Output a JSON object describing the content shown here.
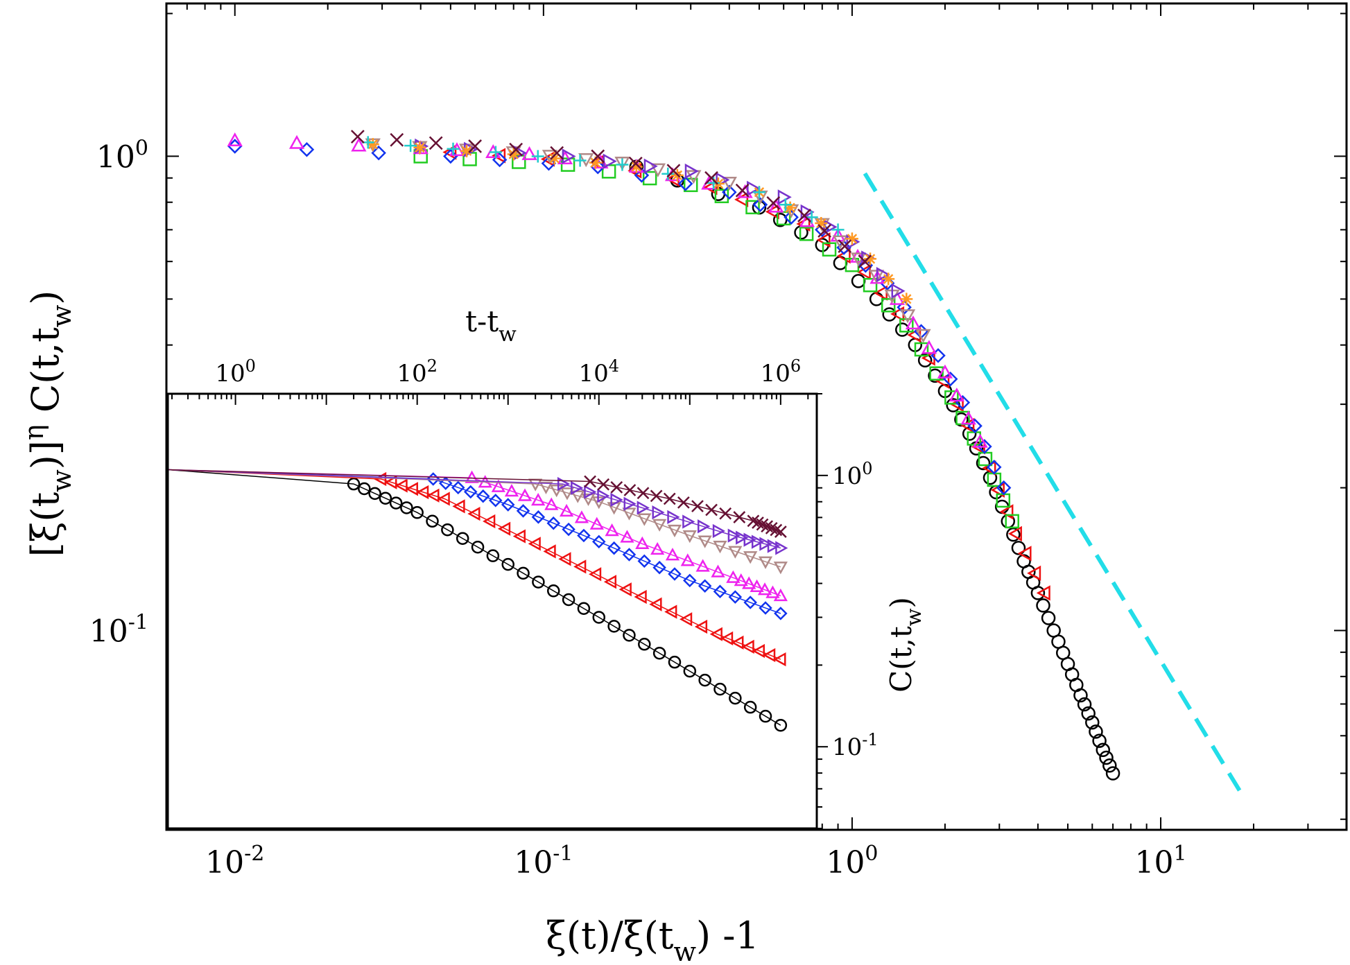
{
  "chart_data": [
    {
      "name": "main",
      "type": "scatter",
      "xscale": "log",
      "yscale": "log",
      "xlim": [
        0.006,
        40
      ],
      "ylim": [
        0.038,
        2.1
      ],
      "xlabel": "ξ(t)/ξ(t_w)  -1",
      "xlabel_parts": [
        "ξ(t)/ξ(t",
        "w",
        ")  -1"
      ],
      "ylabel": "[ξ(t_w)]^η C(t,t_w)",
      "ylabel_parts": [
        "[ξ(t",
        "w",
        ")]",
        "η",
        " C(t,t",
        "w",
        ")"
      ],
      "xticks": [
        {
          "value": 0.01,
          "base": "10",
          "exp": "-2"
        },
        {
          "value": 0.1,
          "base": "10",
          "exp": "-1"
        },
        {
          "value": 1,
          "base": "10",
          "exp": "0"
        },
        {
          "value": 10,
          "base": "10",
          "exp": "1"
        }
      ],
      "yticks": [
        {
          "value": 0.1,
          "base": "10",
          "exp": "-1"
        },
        {
          "value": 1,
          "base": "10",
          "exp": "0"
        }
      ],
      "reference_line": {
        "name": "power-law guide",
        "color": "#22dde8",
        "style": "dashed",
        "x": [
          1.1,
          18
        ],
        "y": [
          0.92,
          0.046
        ]
      },
      "series": [
        {
          "name": "circles",
          "marker": "circle",
          "color": "#000000",
          "x": [
            0.2,
            0.5,
            0.8,
            1.2,
            1.6,
            2,
            2.4,
            2.8,
            3.2,
            3.6,
            4,
            4.5,
            5,
            5.5,
            6,
            6.5,
            7
          ],
          "y": [
            0.95,
            0.78,
            0.65,
            0.5,
            0.4,
            0.32,
            0.26,
            0.21,
            0.17,
            0.14,
            0.12,
            0.1,
            0.085,
            0.073,
            0.064,
            0.056,
            0.05
          ]
        },
        {
          "name": "triangles-left",
          "marker": "triangle-left",
          "color": "#ee1111",
          "x": [
            0.05,
            0.15,
            0.35,
            0.7,
            1.1,
            1.6,
            2.2,
            2.8,
            3.4,
            4.2
          ],
          "y": [
            1.02,
            0.97,
            0.86,
            0.72,
            0.57,
            0.42,
            0.3,
            0.22,
            0.16,
            0.12
          ]
        },
        {
          "name": "squares",
          "marker": "square",
          "color": "#22cc22",
          "x": [
            0.04,
            0.12,
            0.3,
            0.6,
            1,
            1.5,
            2.1,
            2.7,
            3.3
          ],
          "y": [
            1,
            0.96,
            0.87,
            0.74,
            0.59,
            0.44,
            0.31,
            0.23,
            0.17
          ]
        },
        {
          "name": "diamonds",
          "marker": "diamond",
          "color": "#1133ee",
          "x": [
            0.01,
            0.05,
            0.15,
            0.4,
            0.8,
            1.3,
            1.9,
            2.5,
            3.1
          ],
          "y": [
            1.05,
            1,
            0.95,
            0.84,
            0.7,
            0.54,
            0.38,
            0.27,
            0.2
          ]
        },
        {
          "name": "triangles-up",
          "marker": "triangle-up",
          "color": "#ee22ee",
          "x": [
            0.01,
            0.04,
            0.09,
            0.2,
            0.45,
            0.9,
            1.4,
            2,
            2.6
          ],
          "y": [
            1.08,
            1.04,
            1.01,
            0.95,
            0.84,
            0.68,
            0.5,
            0.35,
            0.25
          ]
        },
        {
          "name": "triangles-down",
          "marker": "triangle-down",
          "color": "#b08a88",
          "x": [
            0.028,
            0.08,
            0.18,
            0.4,
            0.8,
            1.2,
            1.7
          ],
          "y": [
            1.06,
            1.02,
            0.97,
            0.88,
            0.72,
            0.56,
            0.42
          ]
        },
        {
          "name": "triangles-right",
          "marker": "triangle-right",
          "color": "#7733cc",
          "x": [
            0.04,
            0.12,
            0.3,
            0.6,
            1,
            1.4
          ],
          "y": [
            1.05,
            1,
            0.93,
            0.82,
            0.66,
            0.52
          ]
        },
        {
          "name": "asterisks",
          "marker": "star",
          "color": "#ff9922",
          "x": [
            0.028,
            0.08,
            0.2,
            0.5,
            1,
            1.5
          ],
          "y": [
            1.06,
            1.01,
            0.95,
            0.84,
            0.67,
            0.5
          ]
        },
        {
          "name": "plus",
          "marker": "plus",
          "color": "#22cccc",
          "x": [
            0.027,
            0.07,
            0.18,
            0.5,
            0.9
          ],
          "y": [
            1.07,
            1.02,
            0.96,
            0.84,
            0.7
          ]
        },
        {
          "name": "crosses",
          "marker": "cross",
          "color": "#661133",
          "x": [
            0.025,
            0.06,
            0.15,
            0.35,
            0.7,
            1.1
          ],
          "y": [
            1.1,
            1.05,
            1,
            0.9,
            0.75,
            0.6
          ]
        }
      ]
    },
    {
      "name": "inset",
      "type": "scatter",
      "xscale": "log",
      "yscale": "log",
      "xlim": [
        0.18,
        2500000
      ],
      "ylim": [
        0.05,
        2
      ],
      "xlabel": "t-t_w",
      "xlabel_parts": [
        "t-t",
        "w"
      ],
      "ylabel": "C(t,t_w)",
      "ylabel_parts": [
        "C(t,t",
        "w",
        ")"
      ],
      "xticks": [
        {
          "value": 1,
          "base": "10",
          "exp": "0"
        },
        {
          "value": 100,
          "base": "10",
          "exp": "2"
        },
        {
          "value": 10000,
          "base": "10",
          "exp": "4"
        },
        {
          "value": 1000000,
          "base": "10",
          "exp": "6"
        }
      ],
      "yticks": [
        {
          "value": 0.1,
          "base": "10",
          "exp": "-1"
        },
        {
          "value": 1,
          "base": "10",
          "exp": "0"
        }
      ],
      "series": [
        {
          "name": "circles",
          "marker": "circle",
          "color": "#000000",
          "x": [
            20,
            100,
            1000,
            10000,
            100000,
            1000000
          ],
          "y": [
            0.93,
            0.73,
            0.47,
            0.3,
            0.19,
            0.12
          ]
        },
        {
          "name": "triangles-left",
          "marker": "triangle-left",
          "color": "#ee1111",
          "x": [
            40,
            200,
            2000,
            20000,
            200000,
            1000000
          ],
          "y": [
            0.97,
            0.82,
            0.56,
            0.38,
            0.26,
            0.21
          ]
        },
        {
          "name": "diamonds",
          "marker": "diamond",
          "color": "#1133ee",
          "x": [
            150,
            1000,
            10000,
            100000,
            1000000
          ],
          "y": [
            0.97,
            0.78,
            0.57,
            0.41,
            0.31
          ]
        },
        {
          "name": "triangles-up",
          "marker": "triangle-up",
          "color": "#ee22ee",
          "x": [
            400,
            3000,
            30000,
            300000,
            1000000
          ],
          "y": [
            0.98,
            0.78,
            0.56,
            0.42,
            0.36
          ]
        },
        {
          "name": "triangles-down",
          "marker": "triangle-down",
          "color": "#b08a88",
          "x": [
            2000,
            10000,
            100000,
            1000000
          ],
          "y": [
            0.93,
            0.8,
            0.6,
            0.46
          ]
        },
        {
          "name": "triangles-right",
          "marker": "triangle-right",
          "color": "#7733cc",
          "x": [
            4000,
            30000,
            300000,
            1000000
          ],
          "y": [
            0.93,
            0.76,
            0.6,
            0.54
          ]
        },
        {
          "name": "crosses",
          "marker": "cross",
          "color": "#661133",
          "x": [
            8000,
            60000,
            500000,
            1000000
          ],
          "y": [
            0.95,
            0.82,
            0.68,
            0.62
          ]
        }
      ]
    }
  ]
}
